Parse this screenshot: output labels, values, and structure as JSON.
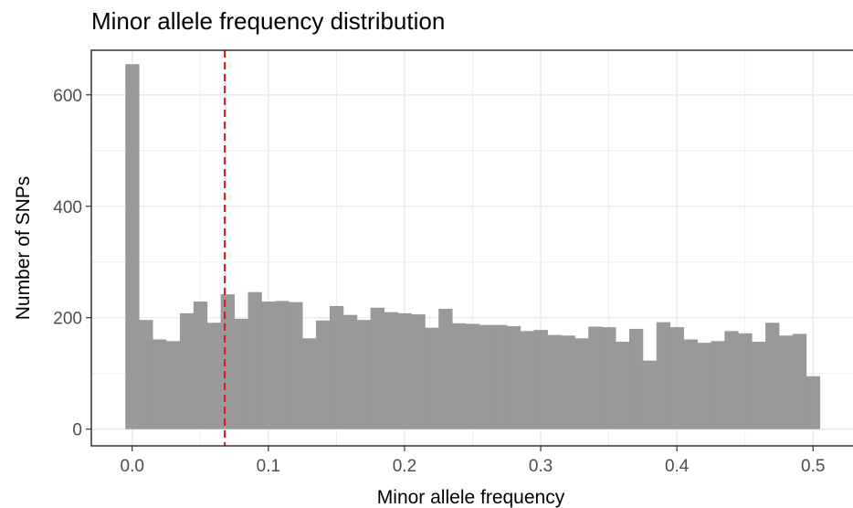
{
  "chart_data": {
    "type": "bar",
    "title": "Minor allele frequency distribution",
    "xlabel": "Minor allele frequency",
    "ylabel": "Number of SNPs",
    "xlim": [
      -0.03,
      0.53
    ],
    "ylim": [
      -30,
      680
    ],
    "bin_width": 0.01,
    "x": [
      0.0,
      0.01,
      0.02,
      0.03,
      0.04,
      0.05,
      0.06,
      0.07,
      0.08,
      0.09,
      0.1,
      0.11,
      0.12,
      0.13,
      0.14,
      0.15,
      0.16,
      0.17,
      0.18,
      0.19,
      0.2,
      0.21,
      0.22,
      0.23,
      0.24,
      0.25,
      0.26,
      0.27,
      0.28,
      0.29,
      0.3,
      0.31,
      0.32,
      0.33,
      0.34,
      0.35,
      0.36,
      0.37,
      0.38,
      0.39,
      0.4,
      0.41,
      0.42,
      0.43,
      0.44,
      0.45,
      0.46,
      0.47,
      0.48,
      0.49,
      0.5
    ],
    "values": [
      655,
      196,
      161,
      158,
      208,
      229,
      191,
      242,
      198,
      246,
      229,
      230,
      228,
      163,
      195,
      221,
      205,
      196,
      218,
      210,
      208,
      206,
      182,
      216,
      190,
      189,
      187,
      187,
      185,
      176,
      178,
      169,
      168,
      163,
      184,
      183,
      157,
      180,
      123,
      192,
      183,
      161,
      155,
      158,
      176,
      172,
      157,
      191,
      168,
      171,
      95
    ],
    "x_ticks": [
      0.0,
      0.1,
      0.2,
      0.3,
      0.4,
      0.5
    ],
    "x_tick_labels": [
      "0.0",
      "0.1",
      "0.2",
      "0.3",
      "0.4",
      "0.5"
    ],
    "y_ticks": [
      0,
      200,
      400,
      600
    ],
    "y_tick_labels": [
      "0",
      "200",
      "400",
      "600"
    ],
    "vline": {
      "x": 0.068,
      "color": "#e41a1c",
      "style": "dashed"
    },
    "bar_color": "#999999",
    "grid": true,
    "legend": "none"
  }
}
